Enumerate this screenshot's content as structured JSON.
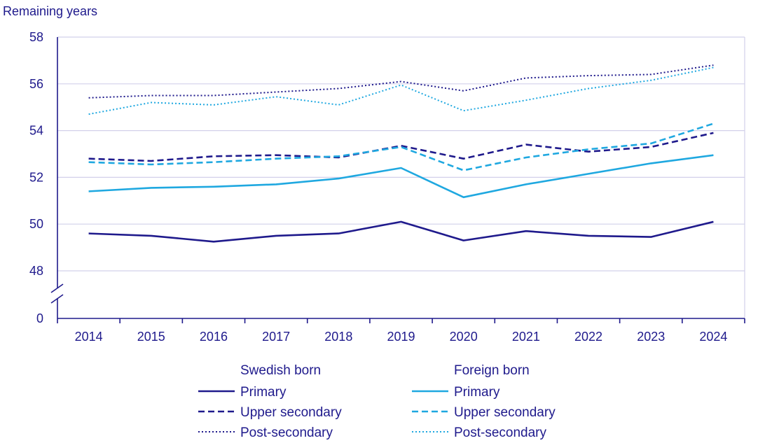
{
  "chart_data": {
    "type": "line",
    "ylabel": "Remaining years",
    "categories": [
      "2014",
      "2015",
      "2016",
      "2017",
      "2018",
      "2019",
      "2020",
      "2021",
      "2022",
      "2023",
      "2024"
    ],
    "y_ticks": [
      "58",
      "56",
      "54",
      "52",
      "50",
      "48",
      "0"
    ],
    "ylim": [
      48,
      58
    ],
    "axis_break": true,
    "legend_groups": [
      {
        "title": "Swedish born",
        "color": "#1f1a8c"
      },
      {
        "title": "Foreign born",
        "color": "#1fa8e0"
      }
    ],
    "series": [
      {
        "name": "Primary",
        "group": 0,
        "style": "solid",
        "values": [
          49.6,
          49.5,
          49.25,
          49.5,
          49.6,
          50.1,
          49.3,
          49.7,
          49.5,
          49.45,
          50.1
        ]
      },
      {
        "name": "Upper secondary",
        "group": 0,
        "style": "dashed",
        "values": [
          52.8,
          52.7,
          52.9,
          52.95,
          52.85,
          53.35,
          52.8,
          53.4,
          53.1,
          53.3,
          53.9
        ]
      },
      {
        "name": "Post-secondary",
        "group": 0,
        "style": "dotted",
        "values": [
          55.4,
          55.5,
          55.5,
          55.65,
          55.8,
          56.1,
          55.7,
          56.25,
          56.35,
          56.4,
          56.8
        ]
      },
      {
        "name": "Primary",
        "group": 1,
        "style": "solid",
        "values": [
          51.4,
          51.55,
          51.6,
          51.7,
          51.95,
          52.4,
          51.15,
          51.7,
          52.15,
          52.6,
          52.95
        ]
      },
      {
        "name": "Upper secondary",
        "group": 1,
        "style": "dashed",
        "values": [
          52.65,
          52.55,
          52.65,
          52.8,
          52.9,
          53.3,
          52.3,
          52.85,
          53.2,
          53.45,
          54.3
        ]
      },
      {
        "name": "Post-secondary",
        "group": 1,
        "style": "dotted",
        "values": [
          54.7,
          55.2,
          55.1,
          55.45,
          55.1,
          55.95,
          54.85,
          55.3,
          55.8,
          56.15,
          56.7
        ]
      }
    ]
  }
}
